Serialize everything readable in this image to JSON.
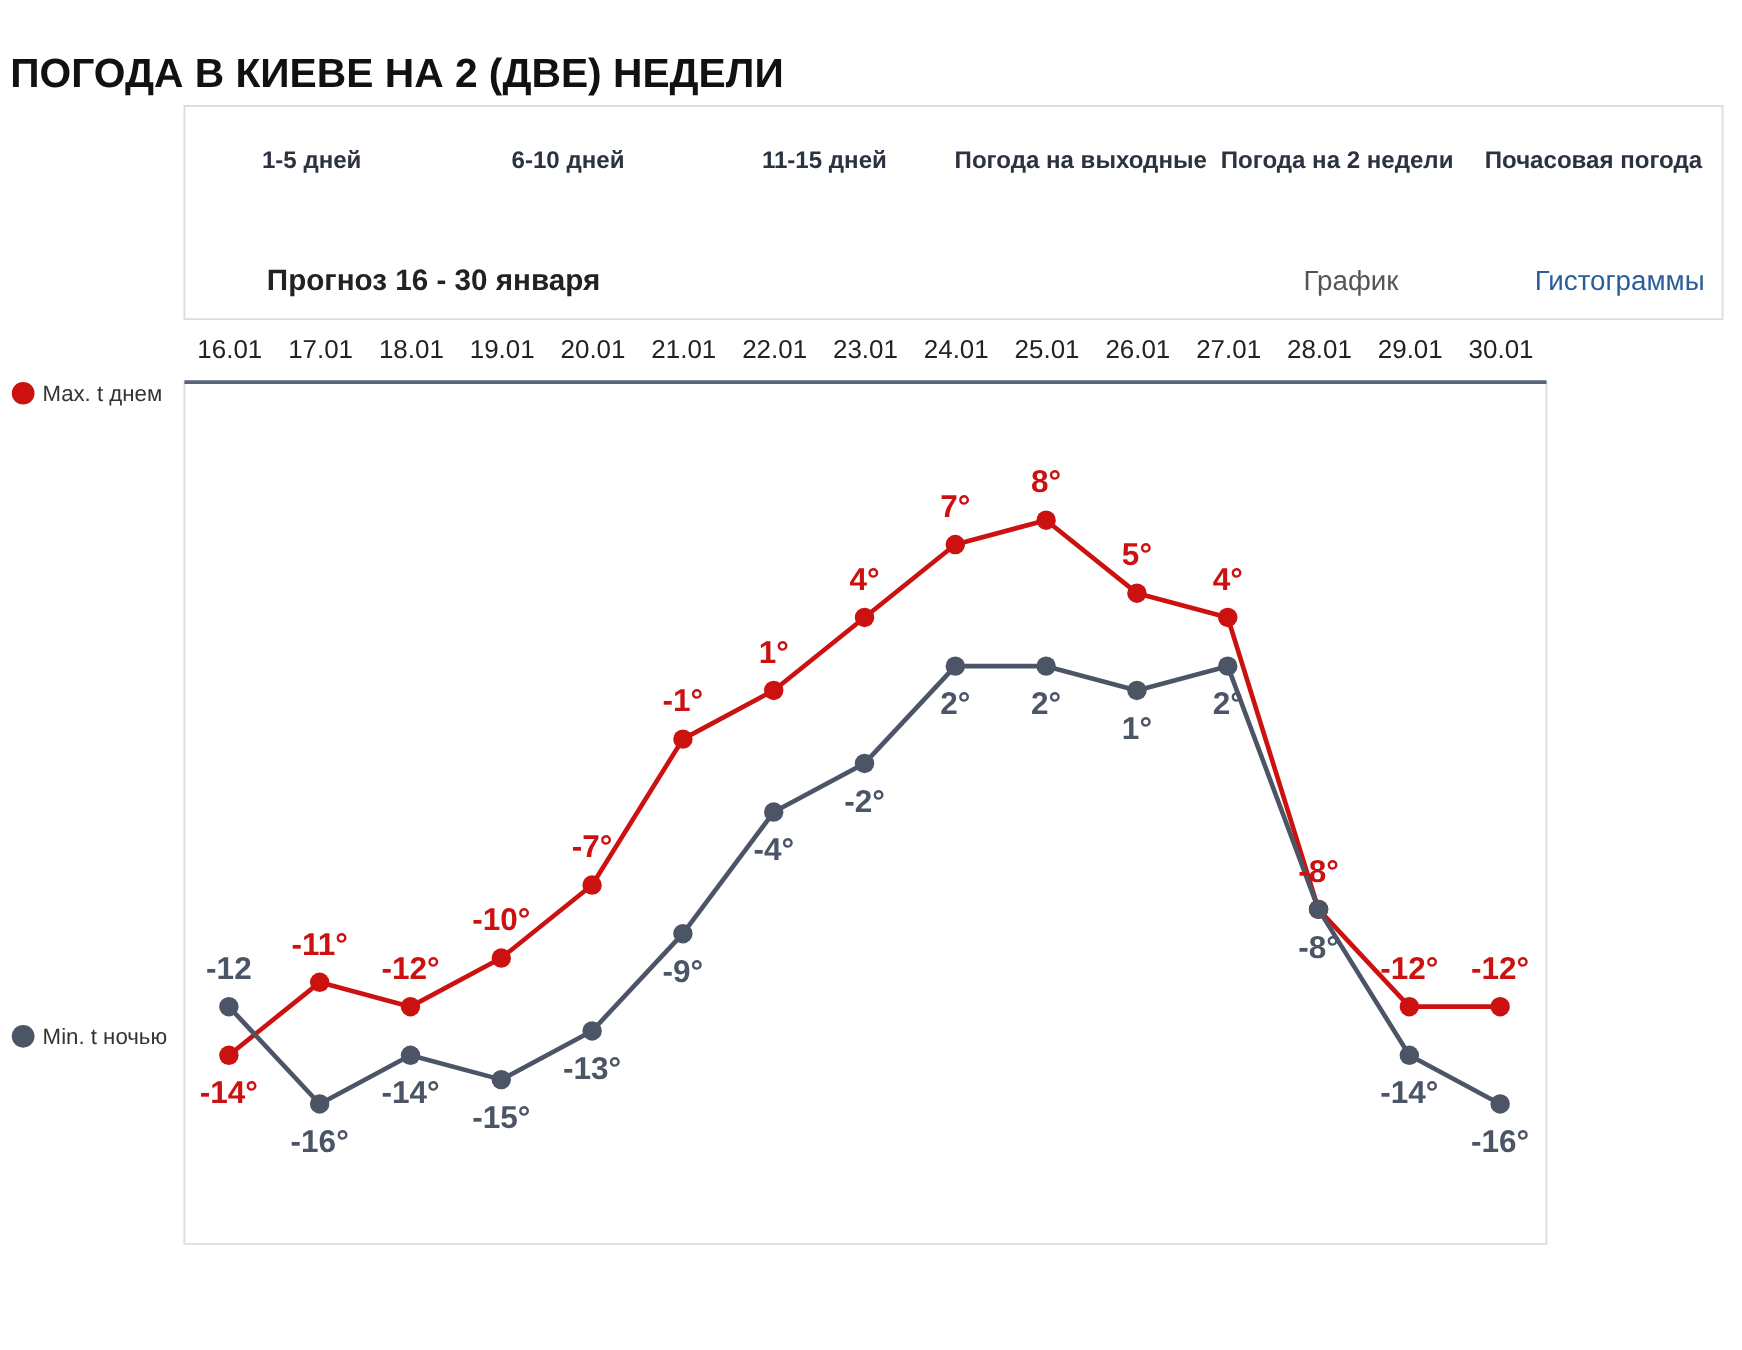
{
  "chart_data": {
    "type": "line",
    "title": "ПОГОДА В КИЕВЕ НА 2 (ДВЕ) НЕДЕЛИ",
    "subtitle": "Прогноз 16 - 30 января",
    "categories": [
      "16.01",
      "17.01",
      "18.01",
      "19.01",
      "20.01",
      "21.01",
      "22.01",
      "23.01",
      "24.01",
      "25.01",
      "26.01",
      "27.01",
      "28.01",
      "29.01",
      "30.01"
    ],
    "series": [
      {
        "name": "Max. t днем",
        "color": "#cc1111",
        "values": [
          -14,
          -11,
          -12,
          -10,
          -7,
          -1,
          1,
          4,
          7,
          8,
          5,
          4,
          -8,
          -12,
          -12
        ],
        "value_labels": [
          "-14°",
          "-11°",
          "-12°",
          "-10°",
          "-7°",
          "-1°",
          "1°",
          "4°",
          "7°",
          "8°",
          "5°",
          "4°",
          "-8°",
          "-12°",
          "-12°"
        ]
      },
      {
        "name": "Min. t ночью",
        "color": "#4b5566",
        "values": [
          -12,
          -16,
          -14,
          -15,
          -13,
          -9,
          -4,
          -2,
          2,
          2,
          1,
          2,
          -8,
          -14,
          -16
        ],
        "value_labels": [
          "-12",
          "-16°",
          "-14°",
          "-15°",
          "-13°",
          "-9°",
          "-4°",
          "-2°",
          "2°",
          "2°",
          "1°",
          "2°",
          "-8°",
          "-14°",
          "-16°"
        ]
      }
    ],
    "annotations": [
      "1-5 дней",
      "6-10 дней",
      "11-15 дней",
      "Погода на выходные",
      "Погода на 2 недели",
      "Почасовая погода",
      "График",
      "Гистограммы"
    ],
    "legend": "left",
    "marker": "circle",
    "line_style": "solid",
    "grid": false,
    "tick_labels": "x"
  }
}
